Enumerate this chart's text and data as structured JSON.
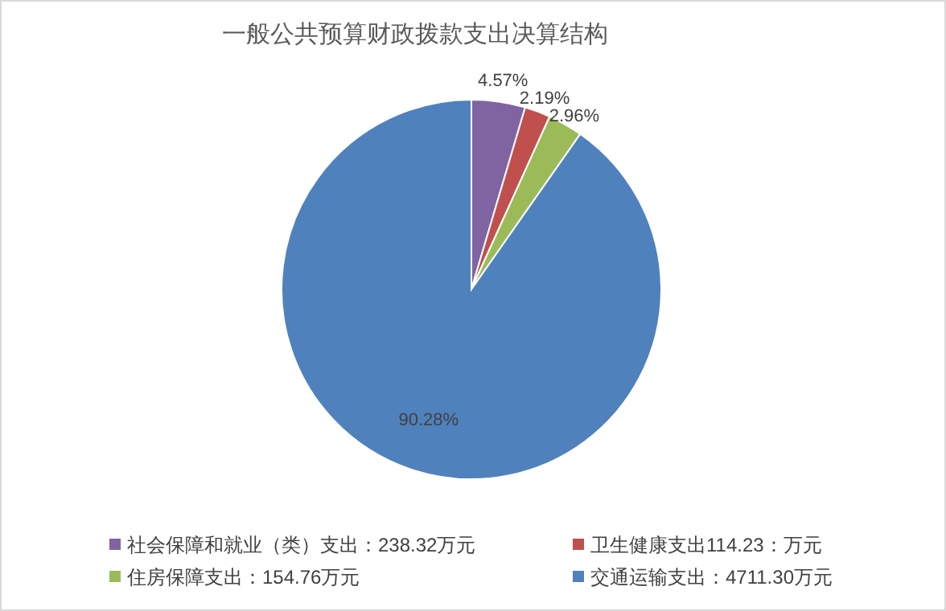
{
  "chart_data": {
    "type": "pie",
    "title": "一般公共预算财政拨款支出决算结构",
    "categories": [
      "社会保障和就业（类）支出：238.32万元",
      "卫生健康支出114.23：万元",
      "住房保障支出：154.76万元",
      "交通运输支出：4711.30万元"
    ],
    "values": [
      4.57,
      2.19,
      2.96,
      90.28
    ],
    "value_labels": [
      "4.57%",
      "2.19%",
      "2.96%",
      "90.28%"
    ],
    "colors": [
      "#8064a2",
      "#c0504d",
      "#9bbb59",
      "#4f81bd"
    ],
    "legend": "bottom"
  }
}
